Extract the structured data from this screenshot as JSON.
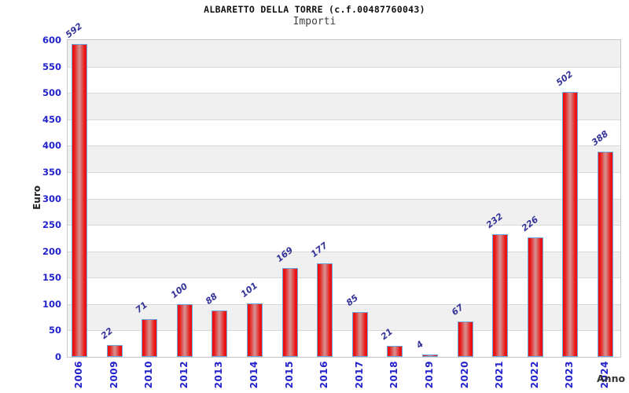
{
  "header": {
    "title": "ALBARETTO DELLA TORRE (c.f.00487760043)",
    "subtitle": "Importi"
  },
  "chart_data": {
    "type": "bar",
    "title": "ALBARETTO DELLA TORRE (c.f.00487760043)",
    "subtitle": "Importi",
    "xlabel": "Anno",
    "ylabel": "Euro",
    "categories": [
      "2006",
      "2009",
      "2010",
      "2012",
      "2013",
      "2014",
      "2015",
      "2016",
      "2017",
      "2018",
      "2019",
      "2020",
      "2021",
      "2022",
      "2023",
      "2024"
    ],
    "values": [
      592,
      22,
      71,
      100,
      88,
      101,
      169,
      177,
      85,
      21,
      4,
      67,
      232,
      226,
      502,
      388
    ],
    "ylim": [
      0,
      600
    ],
    "yticks": [
      0,
      50,
      100,
      150,
      200,
      250,
      300,
      350,
      400,
      450,
      500,
      550,
      600
    ],
    "grid": "horizontal gridlines every 50 with alternating gray/white bands",
    "legend_position": "none",
    "colors": {
      "bar_edge_red": "#ec1212",
      "bar_center_highlight": "#d49494",
      "bar_border": "#69a8dc",
      "axis_tick_label": "#2222cc",
      "value_label": "#333399",
      "band_gray": "#f0f0f0",
      "band_white": "#ffffff",
      "gridline": "#d9d9d9",
      "plot_border": "#c6c6c6"
    }
  }
}
